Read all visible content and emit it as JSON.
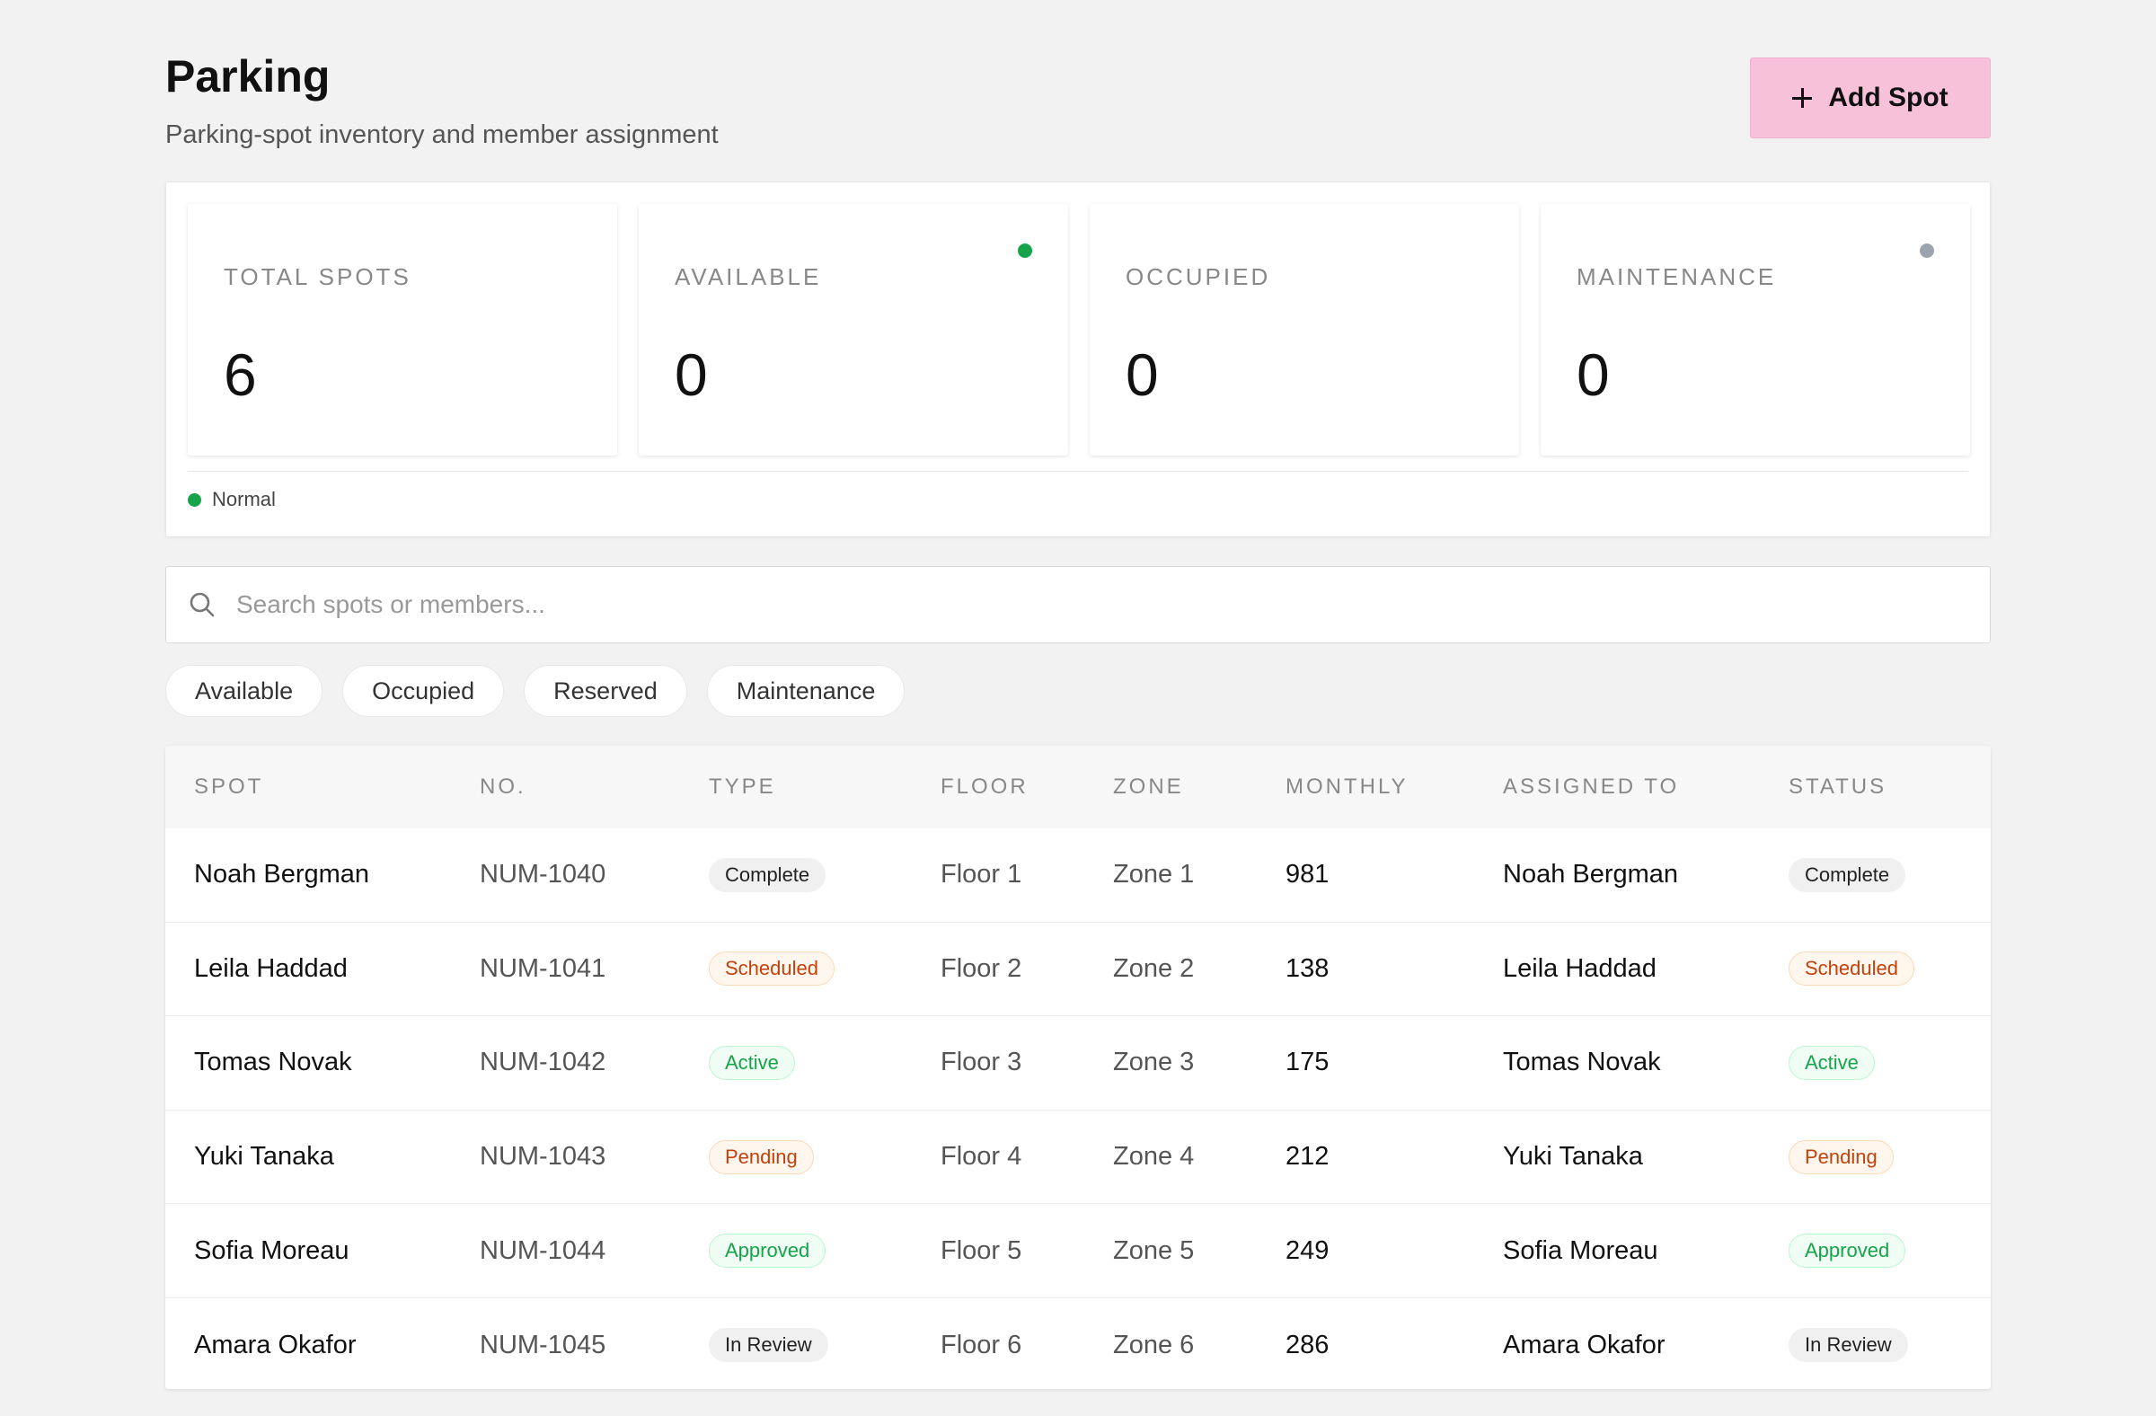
{
  "header": {
    "title": "Parking",
    "subtitle": "Parking-spot inventory and member assignment",
    "add_label": "Add Spot"
  },
  "stats": [
    {
      "label": "TOTAL SPOTS",
      "value": "6",
      "dot": null
    },
    {
      "label": "AVAILABLE",
      "value": "0",
      "dot": "#16a34a"
    },
    {
      "label": "OCCUPIED",
      "value": "0",
      "dot": null
    },
    {
      "label": "MAINTENANCE",
      "value": "0",
      "dot": "#9ca3af"
    }
  ],
  "legend": {
    "label": "Normal",
    "color": "#16a34a"
  },
  "search": {
    "placeholder": "Search spots or members..."
  },
  "filters": [
    "Available",
    "Occupied",
    "Reserved",
    "Maintenance"
  ],
  "table": {
    "columns": [
      "SPOT",
      "NO.",
      "TYPE",
      "FLOOR",
      "ZONE",
      "MONTHLY",
      "ASSIGNED TO",
      "STATUS"
    ],
    "rows": [
      {
        "spot": "Noah Bergman",
        "no": "NUM-1040",
        "type": "Complete",
        "floor": "Floor 1",
        "zone": "Zone 1",
        "monthly": "981",
        "assigned": "Noah Bergman",
        "status": "Complete"
      },
      {
        "spot": "Leila Haddad",
        "no": "NUM-1041",
        "type": "Scheduled",
        "floor": "Floor 2",
        "zone": "Zone 2",
        "monthly": "138",
        "assigned": "Leila Haddad",
        "status": "Scheduled"
      },
      {
        "spot": "Tomas Novak",
        "no": "NUM-1042",
        "type": "Active",
        "floor": "Floor 3",
        "zone": "Zone 3",
        "monthly": "175",
        "assigned": "Tomas Novak",
        "status": "Active"
      },
      {
        "spot": "Yuki Tanaka",
        "no": "NUM-1043",
        "type": "Pending",
        "floor": "Floor 4",
        "zone": "Zone 4",
        "monthly": "212",
        "assigned": "Yuki Tanaka",
        "status": "Pending"
      },
      {
        "spot": "Sofia Moreau",
        "no": "NUM-1044",
        "type": "Approved",
        "floor": "Floor 5",
        "zone": "Zone 5",
        "monthly": "249",
        "assigned": "Sofia Moreau",
        "status": "Approved"
      },
      {
        "spot": "Amara Okafor",
        "no": "NUM-1045",
        "type": "In Review",
        "floor": "Floor 6",
        "zone": "Zone 6",
        "monthly": "286",
        "assigned": "Amara Okafor",
        "status": "In Review"
      }
    ]
  },
  "badge_styles": {
    "Complete": {
      "bg": "#f0f0f0",
      "fg": "#222",
      "border": "#f0f0f0"
    },
    "In Review": {
      "bg": "#f0f0f0",
      "fg": "#222",
      "border": "#f0f0f0"
    },
    "Scheduled": {
      "bg": "#fff7ed",
      "fg": "#c2410c",
      "border": "#fcd9b6"
    },
    "Pending": {
      "bg": "#fff7ed",
      "fg": "#c2410c",
      "border": "#fcd9b6"
    },
    "Active": {
      "bg": "#f0fdf4",
      "fg": "#16a34a",
      "border": "#bbf7d0"
    },
    "Approved": {
      "bg": "#f0fdf4",
      "fg": "#16a34a",
      "border": "#bbf7d0"
    }
  }
}
